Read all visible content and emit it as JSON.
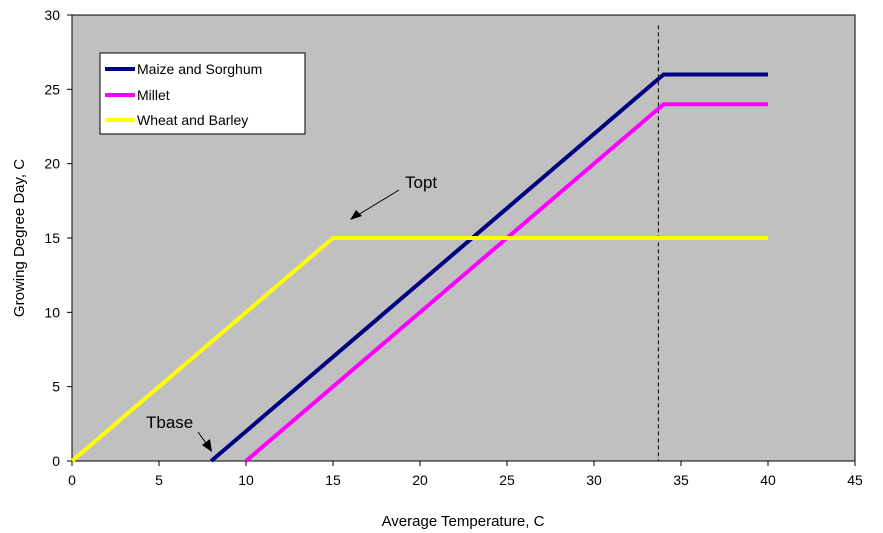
{
  "chart_data": {
    "type": "line",
    "xlabel": "Average Temperature, C",
    "ylabel": "Growing Degree Day, C",
    "xlim": [
      0,
      45
    ],
    "ylim": [
      0,
      30
    ],
    "x_ticks": [
      0,
      5,
      10,
      15,
      20,
      25,
      30,
      35,
      40,
      45
    ],
    "y_ticks": [
      0,
      5,
      10,
      15,
      20,
      25,
      30
    ],
    "x_tick_labels": [
      "0",
      "5",
      "10",
      "15",
      "20",
      "25",
      "30",
      "35",
      "40",
      "45"
    ],
    "y_tick_labels": [
      "0",
      "5",
      "10",
      "15",
      "20",
      "25",
      "30"
    ],
    "grid": false,
    "legend_position": "top-left",
    "background_color": "#c0c0c0",
    "series": [
      {
        "name": "Maize and Sorghum",
        "color": "#000080",
        "points": [
          [
            8,
            0
          ],
          [
            34,
            26
          ],
          [
            40,
            26
          ]
        ]
      },
      {
        "name": "Millet",
        "color": "#ff00ff",
        "points": [
          [
            10,
            0
          ],
          [
            34,
            24
          ],
          [
            40,
            24
          ]
        ]
      },
      {
        "name": "Wheat and Barley",
        "color": "#ffff00",
        "points": [
          [
            0,
            0
          ],
          [
            15,
            15
          ],
          [
            40,
            15
          ]
        ]
      }
    ],
    "reference_line": {
      "type": "vertical",
      "style": "dashed",
      "x": 33.7
    },
    "annotations": [
      {
        "text": "Topt",
        "target": [
          15.7,
          16.3
        ],
        "label_at": [
          19,
          19.4
        ]
      },
      {
        "text": "Tbase",
        "target": [
          7.8,
          0.6
        ],
        "label_at": [
          7.5,
          2.5
        ]
      }
    ]
  }
}
